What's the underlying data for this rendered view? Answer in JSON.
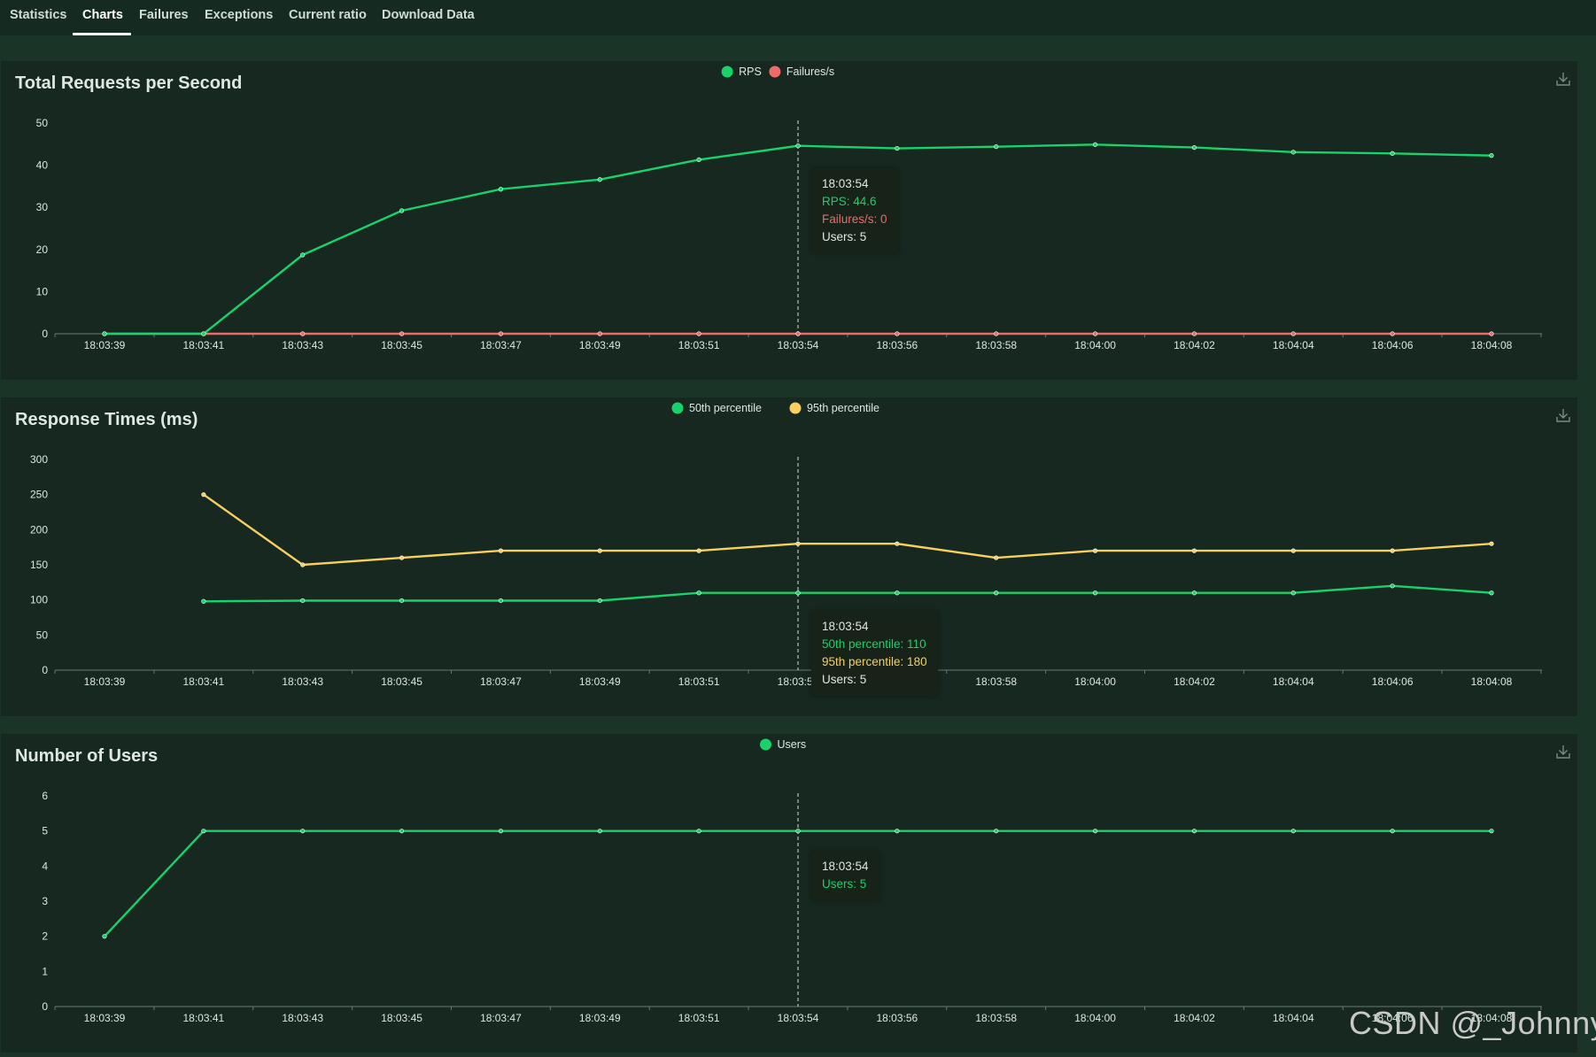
{
  "tabs": [
    {
      "label": "Statistics",
      "active": false
    },
    {
      "label": "Charts",
      "active": true
    },
    {
      "label": "Failures",
      "active": false
    },
    {
      "label": "Exceptions",
      "active": false
    },
    {
      "label": "Current ratio",
      "active": false
    },
    {
      "label": "Download Data",
      "active": false
    }
  ],
  "colors": {
    "green": "#19d26a",
    "red": "#ef6a6a",
    "yellow": "#f7d060",
    "grid": "#6b7a72",
    "background": "#162820"
  },
  "icons": {
    "download": "download-icon"
  },
  "watermark": "CSDN @_Johnny_",
  "chart_data": [
    {
      "type": "line",
      "title": "Total Requests per Second",
      "categories": [
        "18:03:39",
        "18:03:41",
        "18:03:43",
        "18:03:45",
        "18:03:47",
        "18:03:49",
        "18:03:51",
        "18:03:54",
        "18:03:56",
        "18:03:58",
        "18:04:00",
        "18:04:02",
        "18:04:04",
        "18:04:06",
        "18:04:08"
      ],
      "series": [
        {
          "name": "RPS",
          "color": "#19d26a",
          "values": [
            0,
            0,
            18.7,
            29.2,
            34.3,
            36.6,
            41.3,
            44.6,
            44,
            44.4,
            44.9,
            44.2,
            43.1,
            42.8,
            42.3
          ]
        },
        {
          "name": "Failures/s",
          "color": "#ef6a6a",
          "values": [
            0,
            0,
            0,
            0,
            0,
            0,
            0,
            0,
            0,
            0,
            0,
            0,
            0,
            0,
            0
          ]
        }
      ],
      "ylim": [
        0,
        50
      ],
      "yticks": [
        "0",
        "10",
        "20",
        "30",
        "40",
        "50"
      ],
      "legend": "top-center",
      "hover_index": 7,
      "tooltip": {
        "time": "18:03:54",
        "lines": [
          {
            "text": "RPS: 44.6",
            "color": "#19d26a"
          },
          {
            "text": "Failures/s: 0",
            "color": "#ef6a6a"
          },
          {
            "text": "Users: 5",
            "color": "#dfe7e2"
          }
        ]
      }
    },
    {
      "type": "line",
      "title": "Response Times (ms)",
      "categories": [
        "18:03:39",
        "18:03:41",
        "18:03:43",
        "18:03:45",
        "18:03:47",
        "18:03:49",
        "18:03:51",
        "18:03:54",
        "18:03:56",
        "18:03:58",
        "18:04:00",
        "18:04:02",
        "18:04:04",
        "18:04:06",
        "18:04:08"
      ],
      "series": [
        {
          "name": "50th percentile",
          "color": "#19d26a",
          "values": [
            null,
            98,
            99,
            99,
            99,
            99,
            110,
            110,
            110,
            110,
            110,
            110,
            110,
            120,
            110
          ]
        },
        {
          "name": "95th percentile",
          "color": "#f7d060",
          "values": [
            null,
            250,
            150,
            160,
            170,
            170,
            170,
            180,
            180,
            160,
            170,
            170,
            170,
            170,
            180
          ]
        }
      ],
      "ylim": [
        0,
        300
      ],
      "yticks": [
        "0",
        "50",
        "100",
        "150",
        "200",
        "250",
        "300"
      ],
      "legend": "top-center",
      "hover_index": 7,
      "tooltip": {
        "time": "18:03:54",
        "lines": [
          {
            "text": "50th percentile: 110",
            "color": "#19d26a"
          },
          {
            "text": "95th percentile: 180",
            "color": "#f7d060"
          },
          {
            "text": "Users: 5",
            "color": "#dfe7e2"
          }
        ]
      }
    },
    {
      "type": "line",
      "title": "Number of Users",
      "categories": [
        "18:03:39",
        "18:03:41",
        "18:03:43",
        "18:03:45",
        "18:03:47",
        "18:03:49",
        "18:03:51",
        "18:03:54",
        "18:03:56",
        "18:03:58",
        "18:04:00",
        "18:04:02",
        "18:04:04",
        "18:04:06",
        "18:04:08"
      ],
      "series": [
        {
          "name": "Users",
          "color": "#19d26a",
          "values": [
            2,
            5,
            5,
            5,
            5,
            5,
            5,
            5,
            5,
            5,
            5,
            5,
            5,
            5,
            5
          ]
        }
      ],
      "ylim": [
        0,
        6
      ],
      "yticks": [
        "0",
        "1",
        "2",
        "3",
        "4",
        "5",
        "6"
      ],
      "legend": "top-center",
      "hover_index": 7,
      "tooltip": {
        "time": "18:03:54",
        "lines": [
          {
            "text": "Users: 5",
            "color": "#19d26a"
          }
        ]
      }
    }
  ]
}
